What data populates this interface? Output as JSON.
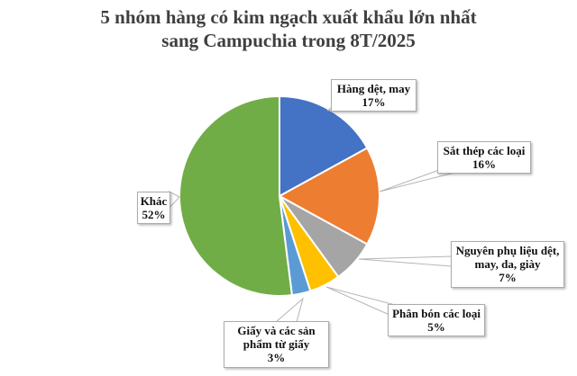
{
  "title": {
    "line1": "5 nhóm hàng có kim ngạch xuất khẩu lớn nhất",
    "line2": "sang Campuchia trong 8T/2025"
  },
  "chart_data": {
    "type": "pie",
    "title": "5 nhóm hàng có kim ngạch xuất khẩu lớn nhất sang Campuchia trong 8T/2025",
    "labels": [
      "Hàng dệt, may",
      "Sắt thép các loại",
      "Nguyên phụ liệu dệt, may, da, giày",
      "Phân bón các loại",
      "Giấy và các sản phẩm từ giấy",
      "Khác"
    ],
    "values": [
      17,
      16,
      7,
      5,
      3,
      52
    ],
    "unit": "%",
    "colors": [
      "#4472C4",
      "#ED7D31",
      "#A5A5A5",
      "#FFC000",
      "#5B9BD5",
      "#70AD47"
    ],
    "slice_ids": [
      "hang-det-may",
      "sat-thep-cac-loai",
      "nguyen-phu-lieu-det-may-da-giay",
      "phan-bon-cac-loai",
      "giay-va-san-pham-tu-giay",
      "khac"
    ],
    "start_angle_deg": 0,
    "direction": "clockwise",
    "legend_position": "callout-labels",
    "title_color": "#3f3f3f",
    "slice_border_color": "#ffffff",
    "leader_line_color": "#b5b5b5"
  },
  "callouts": [
    {
      "label": "Hàng dệt, may",
      "pct": "17%"
    },
    {
      "label": "Sắt thép các loại",
      "pct": "16%"
    },
    {
      "label": "Nguyên phụ liệu dệt, may, da, giày",
      "pct": "7%"
    },
    {
      "label": "Phân bón các loại",
      "pct": "5%"
    },
    {
      "label": "Giấy và các sản phẩm từ giấy",
      "pct": "3%"
    },
    {
      "label": "Khác",
      "pct": "52%"
    }
  ]
}
